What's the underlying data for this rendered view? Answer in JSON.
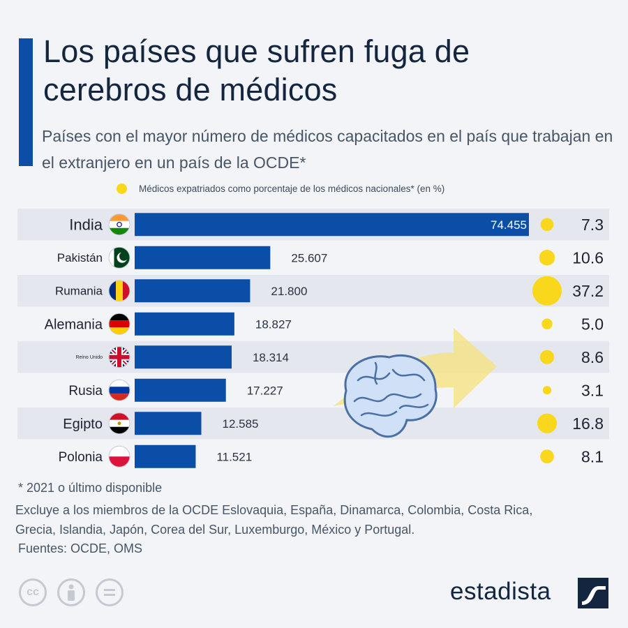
{
  "header": {
    "title": "Los países que sufren fuga de cerebros de médicos",
    "subtitle": "Países con el mayor número de médicos capacitados en el país que trabajan en el extranjero en un país de la OCDE*"
  },
  "legend": {
    "dot_label": "Médicos expatriados como porcentaje de los médicos nacionales* (en %)"
  },
  "chart_data": {
    "type": "bar",
    "orientation": "horizontal",
    "categories": [
      "India",
      "Pakistán",
      "Rumania",
      "Alemania",
      "Reino Unido",
      "Rusia",
      "Egipto",
      "Polonia"
    ],
    "value_labels": [
      "74.455",
      "25.607",
      "21.800",
      "18.827",
      "18.314",
      "17.227",
      "12.585",
      "11.521"
    ],
    "series": [
      {
        "name": "Médicos capacitados en el país que trabajan en el extranjero",
        "values": [
          74455,
          25607,
          21800,
          18827,
          18314,
          17227,
          12585,
          11521
        ]
      },
      {
        "name": "Médicos expatriados como porcentaje de los médicos nacionales* (en %)",
        "values": [
          7.3,
          10.6,
          37.2,
          5.0,
          8.6,
          3.1,
          16.8,
          8.1
        ]
      }
    ],
    "percent_labels": [
      "7.3",
      "10.6",
      "37.2",
      "5.0",
      "8.6",
      "3.1",
      "16.8",
      "8.1"
    ],
    "flags": [
      "india-flag",
      "pakistan-flag",
      "romania-flag",
      "germany-flag",
      "uk-flag",
      "russia-flag",
      "egypt-flag",
      "poland-flag"
    ],
    "xlim": [
      0,
      74455
    ]
  },
  "colors": {
    "bar": "#0b4ea8",
    "dot": "#f9d71c",
    "title": "#13253f",
    "text": "#485566"
  },
  "footer": {
    "footnote": "* 2021 o último disponible",
    "exclusion": "Excluye a los miembros de la OCDE Eslovaquia, España, Dinamarca, Colombia, Costa Rica, Grecia, Islandia, Japón, Corea del Sur, Luxemburgo, México y Portugal.",
    "sources": "Fuentes: OCDE, OMS",
    "brand": "estadista",
    "license_icons": [
      "cc-icon",
      "attribution-icon",
      "no-derivatives-icon"
    ],
    "cc_label": "cc"
  }
}
